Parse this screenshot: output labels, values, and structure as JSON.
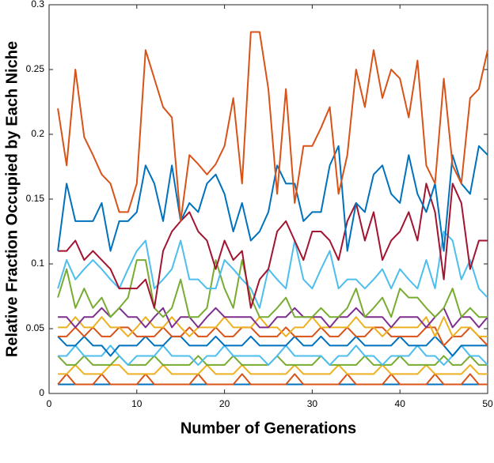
{
  "chart_data": {
    "type": "line",
    "xlabel": "Number of Generations",
    "ylabel": "Relative Fraction Occupied by Each Niche",
    "x": [
      1,
      2,
      3,
      4,
      5,
      6,
      7,
      8,
      9,
      10,
      11,
      12,
      13,
      14,
      15,
      16,
      17,
      18,
      19,
      20,
      21,
      22,
      23,
      24,
      25,
      26,
      27,
      28,
      29,
      30,
      31,
      32,
      33,
      34,
      35,
      36,
      37,
      38,
      39,
      40,
      41,
      42,
      43,
      44,
      45,
      46,
      47,
      48,
      49,
      50
    ],
    "xlim": [
      0,
      50
    ],
    "xticks": [
      0,
      10,
      20,
      30,
      40,
      50
    ],
    "ylim": [
      0,
      0.3
    ],
    "yticks": [
      0,
      0.05,
      0.1,
      0.15,
      0.2,
      0.25,
      0.3
    ],
    "grid": false,
    "series": [
      {
        "color": "#0072BD",
        "values": [
          0.007,
          0.007,
          0.007,
          0.007,
          0.007,
          0.007,
          0.007,
          0.007,
          0.007,
          0.007,
          0.007,
          0.007,
          0.007,
          0.007,
          0.007,
          0.007,
          0.007,
          0.007,
          0.007,
          0.007,
          0.007,
          0.007,
          0.007,
          0.007,
          0.007,
          0.007,
          0.007,
          0.007,
          0.007,
          0.007,
          0.007,
          0.007,
          0.007,
          0.007,
          0.007,
          0.007,
          0.007,
          0.007,
          0.007,
          0.007,
          0.007,
          0.007,
          0.007,
          0.007,
          0.007,
          0.007,
          0.007,
          0.007,
          0.007,
          0.007
        ]
      },
      {
        "color": "#D95319",
        "values": [
          0.007,
          0.015,
          0.007,
          0.007,
          0.007,
          0.015,
          0.007,
          0.007,
          0.007,
          0.007,
          0.015,
          0.007,
          0.007,
          0.007,
          0.007,
          0.007,
          0.015,
          0.007,
          0.007,
          0.007,
          0.007,
          0.015,
          0.007,
          0.007,
          0.007,
          0.007,
          0.007,
          0.015,
          0.007,
          0.007,
          0.007,
          0.007,
          0.007,
          0.015,
          0.007,
          0.007,
          0.007,
          0.007,
          0.015,
          0.007,
          0.007,
          0.007,
          0.007,
          0.015,
          0.007,
          0.007,
          0.007,
          0.015,
          0.007,
          0.007
        ]
      },
      {
        "color": "#EDB120",
        "values": [
          0.015,
          0.015,
          0.022,
          0.015,
          0.015,
          0.015,
          0.022,
          0.022,
          0.015,
          0.015,
          0.015,
          0.015,
          0.022,
          0.015,
          0.015,
          0.015,
          0.015,
          0.022,
          0.015,
          0.015,
          0.015,
          0.022,
          0.015,
          0.015,
          0.015,
          0.015,
          0.015,
          0.022,
          0.015,
          0.015,
          0.015,
          0.015,
          0.022,
          0.015,
          0.015,
          0.015,
          0.015,
          0.022,
          0.015,
          0.015,
          0.015,
          0.015,
          0.022,
          0.015,
          0.015,
          0.015,
          0.015,
          0.022,
          0.015,
          0.015
        ]
      },
      {
        "color": "#77AC30",
        "values": [
          0.029,
          0.022,
          0.022,
          0.029,
          0.022,
          0.022,
          0.022,
          0.029,
          0.022,
          0.022,
          0.022,
          0.029,
          0.022,
          0.022,
          0.022,
          0.022,
          0.029,
          0.022,
          0.022,
          0.022,
          0.029,
          0.022,
          0.022,
          0.022,
          0.022,
          0.029,
          0.022,
          0.022,
          0.022,
          0.022,
          0.029,
          0.022,
          0.022,
          0.022,
          0.022,
          0.029,
          0.022,
          0.022,
          0.022,
          0.029,
          0.022,
          0.022,
          0.022,
          0.022,
          0.029,
          0.022,
          0.022,
          0.029,
          0.022,
          0.022
        ]
      },
      {
        "color": "#4DBEEE",
        "values": [
          0.029,
          0.029,
          0.037,
          0.029,
          0.029,
          0.029,
          0.037,
          0.029,
          0.022,
          0.029,
          0.029,
          0.029,
          0.037,
          0.029,
          0.029,
          0.029,
          0.022,
          0.029,
          0.029,
          0.037,
          0.029,
          0.029,
          0.029,
          0.029,
          0.022,
          0.029,
          0.037,
          0.029,
          0.029,
          0.029,
          0.029,
          0.022,
          0.029,
          0.029,
          0.037,
          0.029,
          0.029,
          0.022,
          0.029,
          0.029,
          0.029,
          0.037,
          0.029,
          0.029,
          0.022,
          0.029,
          0.037,
          0.029,
          0.029,
          0.022
        ]
      },
      {
        "color": "#0072BD",
        "values": [
          0.044,
          0.037,
          0.037,
          0.044,
          0.037,
          0.037,
          0.029,
          0.037,
          0.037,
          0.037,
          0.044,
          0.037,
          0.037,
          0.044,
          0.044,
          0.037,
          0.037,
          0.037,
          0.044,
          0.037,
          0.037,
          0.037,
          0.044,
          0.037,
          0.037,
          0.037,
          0.037,
          0.044,
          0.037,
          0.037,
          0.044,
          0.037,
          0.037,
          0.037,
          0.044,
          0.037,
          0.037,
          0.037,
          0.037,
          0.044,
          0.037,
          0.037,
          0.037,
          0.044,
          0.037,
          0.029,
          0.037,
          0.037,
          0.037,
          0.037
        ]
      },
      {
        "color": "#D95319",
        "values": [
          0.044,
          0.044,
          0.051,
          0.044,
          0.051,
          0.044,
          0.044,
          0.051,
          0.051,
          0.044,
          0.044,
          0.044,
          0.051,
          0.044,
          0.044,
          0.051,
          0.044,
          0.044,
          0.051,
          0.044,
          0.044,
          0.051,
          0.051,
          0.044,
          0.044,
          0.044,
          0.051,
          0.044,
          0.044,
          0.044,
          0.051,
          0.044,
          0.044,
          0.051,
          0.044,
          0.044,
          0.051,
          0.051,
          0.044,
          0.044,
          0.044,
          0.044,
          0.051,
          0.051,
          0.037,
          0.044,
          0.044,
          0.051,
          0.044,
          0.037
        ]
      },
      {
        "color": "#EDB120",
        "values": [
          0.051,
          0.051,
          0.059,
          0.051,
          0.051,
          0.059,
          0.051,
          0.051,
          0.044,
          0.051,
          0.059,
          0.051,
          0.051,
          0.059,
          0.051,
          0.044,
          0.051,
          0.051,
          0.051,
          0.059,
          0.051,
          0.051,
          0.051,
          0.059,
          0.051,
          0.051,
          0.044,
          0.051,
          0.051,
          0.059,
          0.051,
          0.051,
          0.051,
          0.051,
          0.059,
          0.051,
          0.051,
          0.044,
          0.051,
          0.051,
          0.051,
          0.051,
          0.059,
          0.044,
          0.059,
          0.044,
          0.051,
          0.051,
          0.044,
          0.044
        ]
      },
      {
        "color": "#7E2F8E",
        "values": [
          0.059,
          0.059,
          0.051,
          0.059,
          0.059,
          0.066,
          0.059,
          0.066,
          0.059,
          0.059,
          0.051,
          0.059,
          0.066,
          0.051,
          0.059,
          0.059,
          0.051,
          0.059,
          0.066,
          0.059,
          0.059,
          0.059,
          0.059,
          0.051,
          0.051,
          0.059,
          0.059,
          0.066,
          0.059,
          0.059,
          0.059,
          0.051,
          0.059,
          0.059,
          0.066,
          0.059,
          0.059,
          0.059,
          0.051,
          0.059,
          0.059,
          0.059,
          0.051,
          0.059,
          0.066,
          0.051,
          0.059,
          0.059,
          0.051,
          0.059
        ]
      },
      {
        "color": "#77AC30",
        "values": [
          0.074,
          0.096,
          0.066,
          0.081,
          0.066,
          0.074,
          0.059,
          0.066,
          0.074,
          0.103,
          0.103,
          0.066,
          0.059,
          0.066,
          0.088,
          0.059,
          0.059,
          0.066,
          0.103,
          0.081,
          0.066,
          0.103,
          0.074,
          0.059,
          0.059,
          0.066,
          0.074,
          0.059,
          0.059,
          0.059,
          0.066,
          0.059,
          0.059,
          0.066,
          0.081,
          0.059,
          0.066,
          0.074,
          0.059,
          0.081,
          0.074,
          0.074,
          0.066,
          0.059,
          0.066,
          0.081,
          0.059,
          0.066,
          0.059,
          0.059
        ]
      },
      {
        "color": "#4DBEEE",
        "values": [
          0.081,
          0.103,
          0.088,
          0.096,
          0.103,
          0.096,
          0.088,
          0.081,
          0.096,
          0.11,
          0.118,
          0.081,
          0.088,
          0.096,
          0.118,
          0.088,
          0.088,
          0.081,
          0.081,
          0.103,
          0.096,
          0.088,
          0.081,
          0.066,
          0.096,
          0.088,
          0.081,
          0.118,
          0.088,
          0.081,
          0.096,
          0.11,
          0.081,
          0.088,
          0.088,
          0.081,
          0.088,
          0.096,
          0.081,
          0.096,
          0.088,
          0.081,
          0.103,
          0.081,
          0.125,
          0.118,
          0.088,
          0.103,
          0.081,
          0.074
        ]
      },
      {
        "color": "#A2142F",
        "values": [
          0.11,
          0.11,
          0.118,
          0.103,
          0.11,
          0.103,
          0.096,
          0.081,
          0.081,
          0.081,
          0.088,
          0.066,
          0.11,
          0.125,
          0.133,
          0.14,
          0.125,
          0.118,
          0.096,
          0.118,
          0.103,
          0.11,
          0.066,
          0.088,
          0.096,
          0.125,
          0.133,
          0.118,
          0.103,
          0.125,
          0.125,
          0.118,
          0.103,
          0.133,
          0.147,
          0.118,
          0.14,
          0.103,
          0.118,
          0.125,
          0.14,
          0.118,
          0.162,
          0.14,
          0.088,
          0.162,
          0.147,
          0.096,
          0.118,
          0.118
        ]
      },
      {
        "color": "#0072BD",
        "values": [
          0.11,
          0.162,
          0.133,
          0.133,
          0.133,
          0.147,
          0.11,
          0.133,
          0.133,
          0.14,
          0.176,
          0.162,
          0.133,
          0.176,
          0.133,
          0.147,
          0.14,
          0.162,
          0.169,
          0.154,
          0.125,
          0.147,
          0.118,
          0.125,
          0.14,
          0.176,
          0.162,
          0.162,
          0.133,
          0.14,
          0.14,
          0.176,
          0.191,
          0.11,
          0.147,
          0.14,
          0.169,
          0.176,
          0.154,
          0.147,
          0.184,
          0.154,
          0.14,
          0.162,
          0.11,
          0.184,
          0.162,
          0.154,
          0.191,
          0.184
        ]
      },
      {
        "color": "#D95319",
        "values": [
          0.22,
          0.176,
          0.25,
          0.198,
          0.184,
          0.169,
          0.162,
          0.14,
          0.14,
          0.162,
          0.265,
          0.243,
          0.221,
          0.213,
          0.133,
          0.184,
          0.177,
          0.169,
          0.177,
          0.191,
          0.228,
          0.162,
          0.279,
          0.279,
          0.235,
          0.154,
          0.235,
          0.147,
          0.191,
          0.191,
          0.205,
          0.221,
          0.154,
          0.184,
          0.25,
          0.221,
          0.265,
          0.228,
          0.25,
          0.243,
          0.213,
          0.257,
          0.176,
          0.162,
          0.243,
          0.176,
          0.162,
          0.228,
          0.235,
          0.265
        ]
      }
    ]
  }
}
